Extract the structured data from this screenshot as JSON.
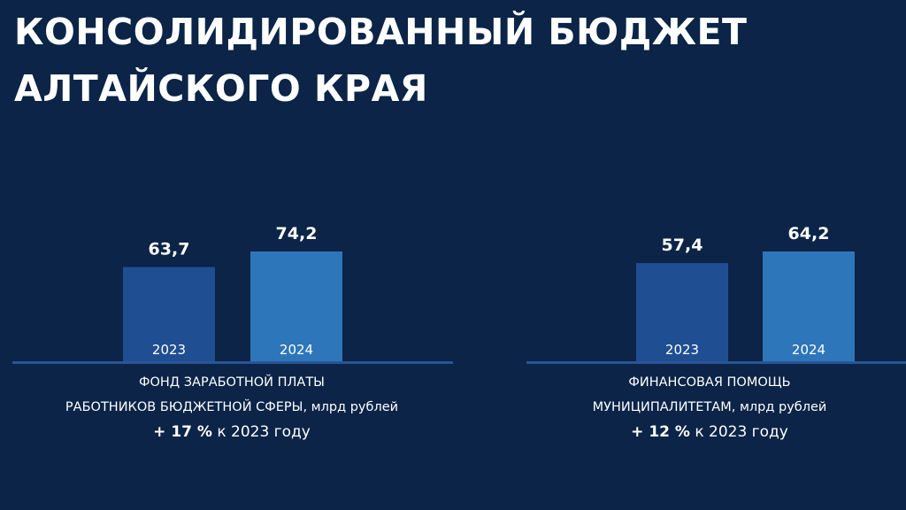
{
  "title": {
    "line1": "КОНСОЛИДИРОВАННЫЙ БЮДЖЕТ",
    "line2": "АЛТАЙСКОГО КРАЯ"
  },
  "colors": {
    "background": "#0b2447",
    "bar_2023": "#1f4e93",
    "bar_2024": "#2e76ba",
    "baseline": "#2a5596",
    "text": "#ffffff"
  },
  "chart_data": [
    {
      "type": "bar",
      "categories": [
        "2023",
        "2024"
      ],
      "values": [
        63.7,
        74.2
      ],
      "value_labels": [
        "63,7",
        "74,2"
      ],
      "title": "ФОНД ЗАРАБОТНОЙ ПЛАТЫ РАБОТНИКОВ БЮДЖЕТНОЙ СФЕРЫ, млрд рублей",
      "caption_lines": [
        "ФОНД ЗАРАБОТНОЙ ПЛАТЫ",
        "РАБОТНИКОВ БЮДЖЕТНОЙ СФЕРЫ, млрд рублей"
      ],
      "change_bold": "+ 17 %",
      "change_rest": "к 2023 году",
      "ylim": [
        0,
        74.2
      ],
      "grid": false
    },
    {
      "type": "bar",
      "categories": [
        "2023",
        "2024"
      ],
      "values": [
        57.4,
        64.2
      ],
      "value_labels": [
        "57,4",
        "64,2"
      ],
      "title": "ФИНАНСОВАЯ ПОМОЩЬ МУНИЦИПАЛИТЕТАМ, млрд рублей",
      "caption_lines": [
        "ФИНАНСОВАЯ ПОМОЩЬ",
        "МУНИЦИПАЛИТЕТАМ, млрд рублей"
      ],
      "change_bold": "+ 12 %",
      "change_rest": "к 2023 году",
      "ylim": [
        0,
        64.2
      ],
      "grid": false
    }
  ]
}
